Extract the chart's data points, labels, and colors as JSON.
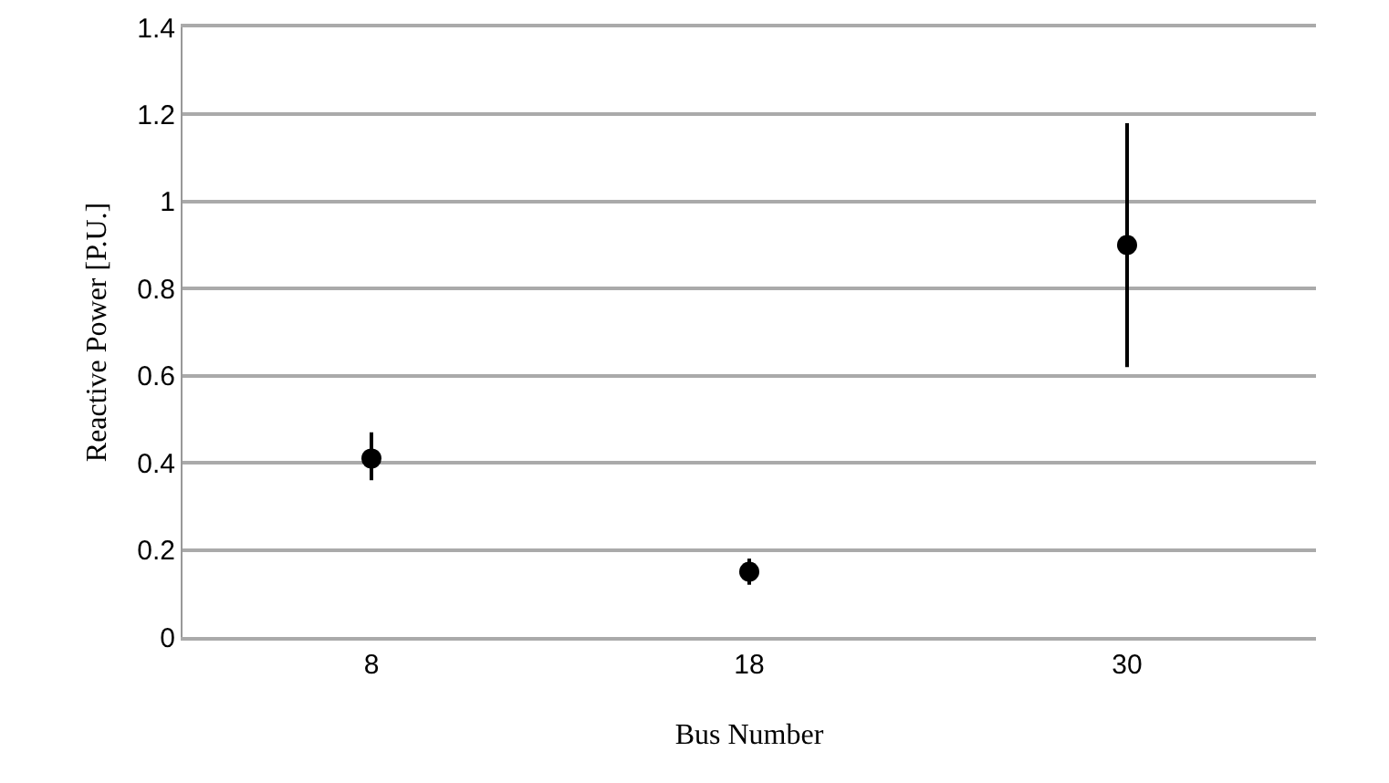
{
  "chart_data": {
    "type": "scatter",
    "xlabel": "Bus Number",
    "ylabel": "Reactive Power [P.U.]",
    "categories": [
      "8",
      "18",
      "30"
    ],
    "values": [
      0.41,
      0.15,
      0.9
    ],
    "errors": [
      [
        0.36,
        0.47
      ],
      [
        0.12,
        0.18
      ],
      [
        0.62,
        1.18
      ]
    ],
    "color": "#000000",
    "marker": "circle",
    "ylim": [
      0,
      1.4
    ],
    "yticks": [
      0,
      0.2,
      0.4,
      0.6,
      0.8,
      1,
      1.2,
      1.4
    ],
    "grid": "y"
  }
}
